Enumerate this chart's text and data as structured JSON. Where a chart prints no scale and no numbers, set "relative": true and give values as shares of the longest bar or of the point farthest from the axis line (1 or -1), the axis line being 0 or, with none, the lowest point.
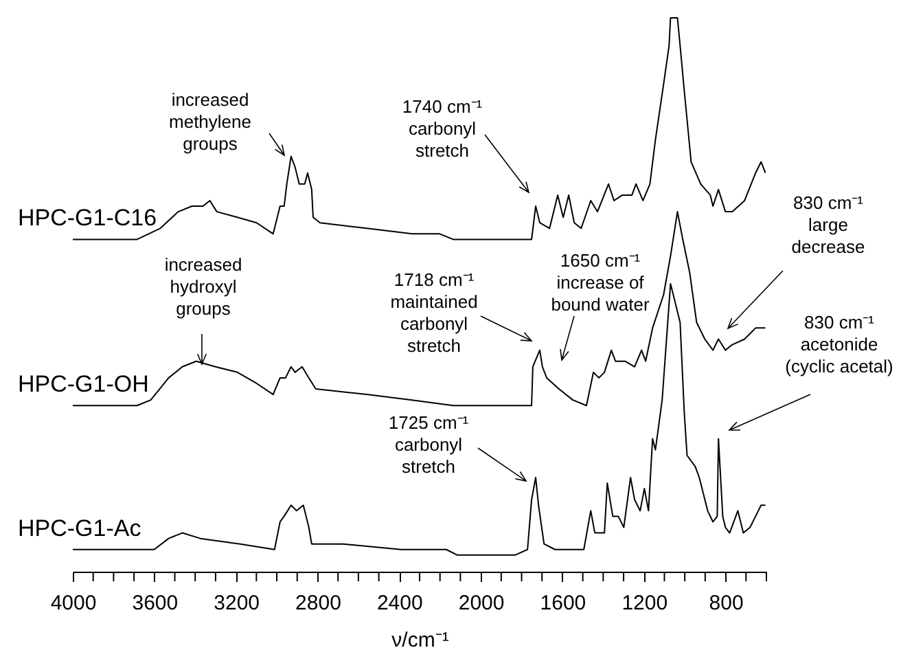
{
  "chart_data": {
    "type": "line",
    "relative": true,
    "xlabel": "ν/cm⁻¹",
    "xlim": [
      4000,
      600
    ],
    "xticks": [
      4000,
      {
        "value": 3900,
        "label": null
      },
      {
        "value": 3800,
        "label": null
      },
      {
        "value": 3700,
        "label": null
      },
      3600,
      {
        "value": 3500,
        "label": null
      },
      {
        "value": 3400,
        "label": null
      },
      {
        "value": 3300,
        "label": null
      },
      3200,
      {
        "value": 3100,
        "label": null
      },
      {
        "value": 3000,
        "label": null
      },
      {
        "value": 2900,
        "label": null
      },
      2800,
      {
        "value": 2700,
        "label": null
      },
      {
        "value": 2600,
        "label": null
      },
      {
        "value": 2500,
        "label": null
      },
      2400,
      {
        "value": 2300,
        "label": null
      },
      {
        "value": 2200,
        "label": null
      },
      {
        "value": 2100,
        "label": null
      },
      2000,
      {
        "value": 1900,
        "label": null
      },
      {
        "value": 1800,
        "label": null
      },
      {
        "value": 1700,
        "label": null
      },
      1600,
      {
        "value": 1500,
        "label": null
      },
      {
        "value": 1400,
        "label": null
      },
      {
        "value": 1300,
        "label": null
      },
      1200,
      {
        "value": 1100,
        "label": null
      },
      {
        "value": 1000,
        "label": null
      },
      {
        "value": 900,
        "label": null
      },
      800,
      {
        "value": 700,
        "label": null
      },
      {
        "value": 600,
        "label": null
      }
    ],
    "series": [
      {
        "name": "HPC-G1-C16",
        "color": "#000000",
        "x": [
          4000,
          3685,
          3571,
          3483,
          3416,
          3362,
          3328,
          3294,
          3193,
          3099,
          3018,
          2984,
          2964,
          2951,
          2930,
          2910,
          2890,
          2863,
          2849,
          2829,
          2822,
          2788,
          2559,
          2337,
          2202,
          2135,
          1980,
          1751,
          1731,
          1711,
          1663,
          1623,
          1596,
          1569,
          1542,
          1508,
          1461,
          1428,
          1374,
          1347,
          1306,
          1259,
          1239,
          1205,
          1171,
          1144,
          1104,
          1077,
          1070,
          1036,
          1023,
          1003,
          969,
          922,
          875,
          862,
          835,
          801,
          767,
          707,
          653,
          626,
          605
        ],
        "values": [
          0.6,
          0.6,
          0.62,
          0.65,
          0.66,
          0.66,
          0.67,
          0.65,
          0.64,
          0.63,
          0.61,
          0.66,
          0.66,
          0.7,
          0.75,
          0.73,
          0.7,
          0.7,
          0.72,
          0.69,
          0.64,
          0.63,
          0.62,
          0.61,
          0.61,
          0.6,
          0.6,
          0.6,
          0.66,
          0.63,
          0.62,
          0.68,
          0.64,
          0.68,
          0.63,
          0.62,
          0.67,
          0.65,
          0.7,
          0.67,
          0.68,
          0.68,
          0.7,
          0.67,
          0.7,
          0.78,
          0.88,
          0.95,
          1.0,
          1.0,
          0.95,
          0.87,
          0.74,
          0.7,
          0.68,
          0.66,
          0.69,
          0.65,
          0.65,
          0.67,
          0.72,
          0.74,
          0.72
        ]
      },
      {
        "name": "HPC-G1-OH",
        "color": "#000000",
        "x": [
          4000,
          3685,
          3618,
          3530,
          3463,
          3395,
          3301,
          3193,
          3099,
          3018,
          2984,
          2957,
          2930,
          2910,
          2876,
          2843,
          2809,
          2559,
          2337,
          2135,
          1980,
          1751,
          1745,
          1711,
          1698,
          1677,
          1617,
          1549,
          1482,
          1448,
          1421,
          1394,
          1360,
          1340,
          1293,
          1246,
          1212,
          1192,
          1158,
          1104,
          1070,
          1036,
          1010,
          976,
          942,
          902,
          862,
          835,
          801,
          767,
          707,
          653,
          605
        ],
        "values": [
          0.3,
          0.3,
          0.31,
          0.35,
          0.37,
          0.38,
          0.37,
          0.36,
          0.34,
          0.32,
          0.35,
          0.35,
          0.37,
          0.36,
          0.37,
          0.35,
          0.33,
          0.32,
          0.31,
          0.3,
          0.3,
          0.3,
          0.37,
          0.4,
          0.37,
          0.35,
          0.33,
          0.31,
          0.3,
          0.36,
          0.35,
          0.36,
          0.4,
          0.38,
          0.38,
          0.37,
          0.4,
          0.38,
          0.44,
          0.5,
          0.57,
          0.65,
          0.6,
          0.54,
          0.45,
          0.42,
          0.4,
          0.42,
          0.4,
          0.41,
          0.42,
          0.44,
          0.44
        ]
      },
      {
        "name": "HPC-G1-Ac",
        "color": "#000000",
        "x": [
          4000,
          3601,
          3530,
          3463,
          3375,
          3180,
          3011,
          2984,
          2964,
          2930,
          2903,
          2870,
          2843,
          2829,
          2674,
          2391,
          2169,
          2115,
          1832,
          1771,
          1751,
          1731,
          1717,
          1690,
          1636,
          1495,
          1461,
          1441,
          1394,
          1380,
          1353,
          1326,
          1299,
          1266,
          1246,
          1219,
          1198,
          1178,
          1158,
          1144,
          1111,
          1070,
          1023,
          1003,
          989,
          949,
          929,
          888,
          862,
          841,
          835,
          814,
          801,
          780,
          740,
          713,
          680,
          653,
          626,
          605
        ],
        "values": [
          0.04,
          0.04,
          0.06,
          0.07,
          0.06,
          0.05,
          0.04,
          0.09,
          0.1,
          0.12,
          0.11,
          0.12,
          0.08,
          0.05,
          0.05,
          0.04,
          0.04,
          0.03,
          0.03,
          0.04,
          0.13,
          0.17,
          0.12,
          0.05,
          0.04,
          0.04,
          0.11,
          0.07,
          0.07,
          0.16,
          0.1,
          0.1,
          0.08,
          0.17,
          0.13,
          0.11,
          0.15,
          0.11,
          0.24,
          0.22,
          0.31,
          0.52,
          0.45,
          0.29,
          0.21,
          0.19,
          0.17,
          0.11,
          0.09,
          0.1,
          0.24,
          0.1,
          0.08,
          0.07,
          0.11,
          0.07,
          0.08,
          0.1,
          0.12,
          0.12
        ]
      }
    ],
    "annotations": [
      "increased\nmethylene\ngroups",
      "1740 cm⁻¹\ncarbonyl\nstretch",
      "increased\nhydroxyl\ngroups",
      "1718 cm⁻¹\nmaintained\ncarbonyl\nstretch",
      "1650 cm⁻¹\nincrease of\nbound water",
      "830 cm⁻¹\nlarge\ndecrease",
      "830 cm⁻¹\nacetonide\n(cyclic acetal)",
      "1725 cm⁻¹\ncarbonyl\nstretch"
    ]
  }
}
